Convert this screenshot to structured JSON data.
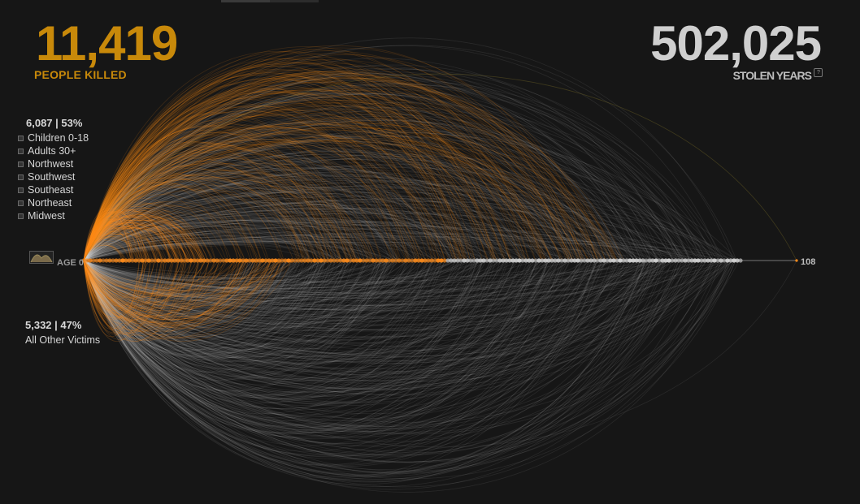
{
  "header": {
    "people_killed": "11,419",
    "people_killed_label": "PEOPLE KILLED",
    "stolen_years": "502,025",
    "stolen_years_label": "STOLEN YEARS",
    "help_glyph": "?"
  },
  "filters": {
    "stat": "6,087 | 53%",
    "items": [
      "Children 0-18",
      "Adults 30+",
      "Northwest",
      "Southwest",
      "Southeast",
      "Northeast",
      "Midwest"
    ]
  },
  "other_victims": {
    "stat": "5,332 | 47%",
    "label": "All Other Victims"
  },
  "axis": {
    "label": "AGE",
    "min_label": "0",
    "max_label": "108"
  },
  "colors": {
    "highlight": "#ff8c1a",
    "other": "#d9d9d9",
    "killed_text": "#c8890a",
    "background": "#161616"
  },
  "chart_data": {
    "type": "arc",
    "total_people_killed": 11419,
    "total_stolen_years": 502025,
    "highlighted": {
      "count": 6087,
      "percent": 53,
      "direction": "above"
    },
    "other": {
      "count": 5332,
      "percent": 47,
      "direction": "below"
    },
    "age_range": [
      0,
      108
    ],
    "grid": false
  }
}
